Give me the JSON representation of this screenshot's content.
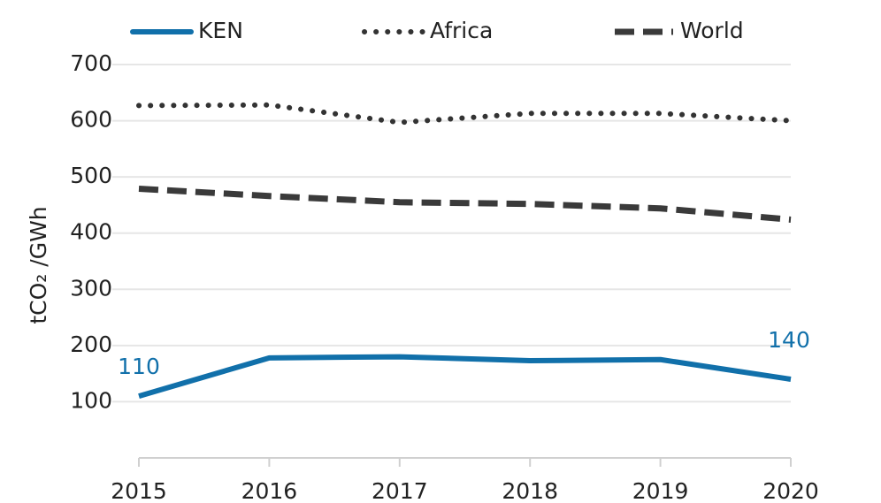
{
  "chart_data": {
    "type": "line",
    "y_label": "tCO₂ /GWh",
    "x": [
      2015,
      2016,
      2017,
      2018,
      2019,
      2020
    ],
    "xlim": [
      2015,
      2020
    ],
    "xticks": [
      2015,
      2016,
      2017,
      2018,
      2019,
      2020
    ],
    "ylim": [
      0,
      700
    ],
    "yticks": [
      100,
      200,
      300,
      400,
      500,
      600,
      700
    ],
    "grid": true,
    "legend": "top",
    "series": [
      {
        "name": "KEN",
        "color": "#1170aa",
        "style": "solid",
        "values": [
          110,
          178,
          180,
          173,
          175,
          140
        ],
        "value_labels": [
          "110",
          null,
          null,
          null,
          null,
          "140"
        ]
      },
      {
        "name": "Africa",
        "color": "#333333",
        "style": "dotted",
        "values": [
          627,
          628,
          597,
          613,
          613,
          600
        ]
      },
      {
        "name": "World",
        "color": "#3a3a3a",
        "style": "dashed",
        "values": [
          479,
          466,
          455,
          452,
          444,
          424
        ]
      }
    ]
  }
}
